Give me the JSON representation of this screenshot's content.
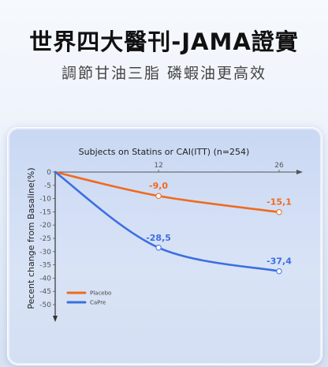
{
  "header": {
    "title": "世界四大醫刊-JAMA證實",
    "subtitle": "調節甘油三脂 磷蝦油更高效"
  },
  "chart_data": {
    "type": "line",
    "title": "Subjects on Statins or CAI(ITT) (n=254)",
    "ylabel": "Pecent change from Basaline(%)",
    "xlabel": "",
    "x": [
      0,
      12,
      26
    ],
    "x_tick_labels": [
      "12",
      "26"
    ],
    "xlim": [
      0,
      26
    ],
    "ylim": [
      -50,
      0
    ],
    "y_ticks": [
      0,
      -5,
      -10,
      -15,
      -20,
      -25,
      -30,
      -35,
      -40,
      -45,
      -50
    ],
    "y_tick_labels": [
      "0",
      "-5",
      "-10",
      "-15",
      "-20",
      "-25",
      "-30",
      "-35",
      "-40",
      "-45",
      "-50"
    ],
    "series": [
      {
        "name": "Placebo",
        "color": "#f06a1e",
        "values": [
          0,
          -9.0,
          -15.1
        ],
        "labels": [
          "",
          "-9,0",
          "-15,1"
        ]
      },
      {
        "name": "CaPre",
        "color": "#3b6fe0",
        "values": [
          0,
          -28.5,
          -37.4
        ],
        "labels": [
          "",
          "-28,5",
          "-37,4"
        ]
      }
    ],
    "legend_position": "bottom-left",
    "grid": false
  }
}
